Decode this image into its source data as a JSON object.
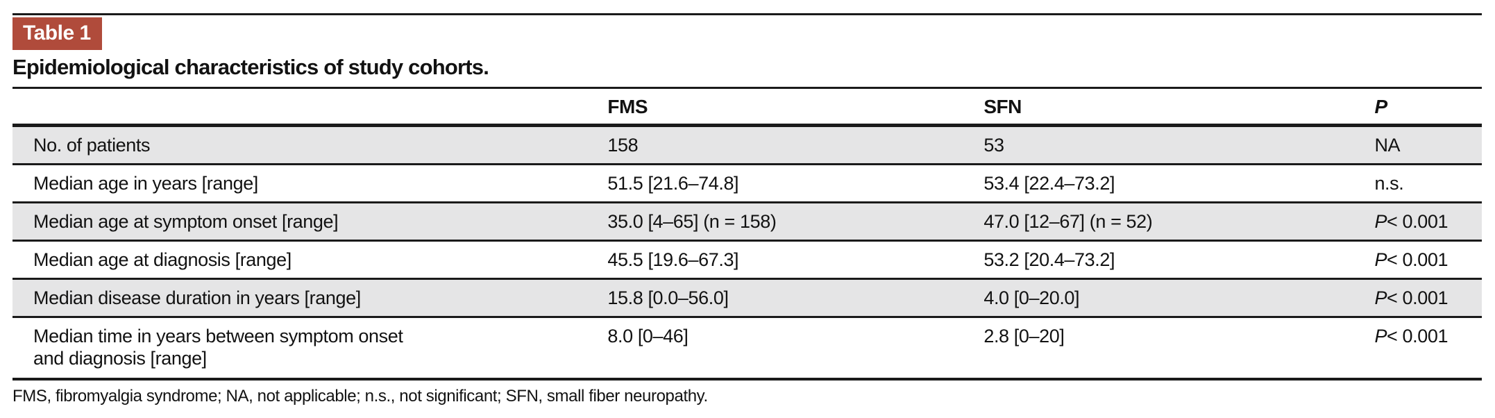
{
  "badge": {
    "label": "Table 1"
  },
  "title": "Epidemiological characteristics of study cohorts.",
  "table": {
    "columns": [
      "",
      "FMS",
      "SFN",
      "P"
    ],
    "rows": [
      {
        "label": "No. of patients",
        "label2": "",
        "fms": "158",
        "sfn": "53",
        "p_italic": "",
        "p_text": "NA"
      },
      {
        "label": "Median age in years [range]",
        "label2": "",
        "fms": "51.5 [21.6–74.8]",
        "sfn": "53.4 [22.4–73.2]",
        "p_italic": "",
        "p_text": "n.s."
      },
      {
        "label": "Median age at symptom onset [range]",
        "label2": "",
        "fms": "35.0 [4–65] (n = 158)",
        "sfn": "47.0 [12–67] (n = 52)",
        "p_italic": "P",
        "p_text": "< 0.001"
      },
      {
        "label": "Median age at diagnosis [range]",
        "label2": "",
        "fms": "45.5 [19.6–67.3]",
        "sfn": "53.2 [20.4–73.2]",
        "p_italic": "P",
        "p_text": "< 0.001"
      },
      {
        "label": "Median disease duration in years [range]",
        "label2": "",
        "fms": "15.8 [0.0–56.0]",
        "sfn": "4.0 [0–20.0]",
        "p_italic": "P",
        "p_text": "< 0.001"
      },
      {
        "label": "Median time in years between symptom onset",
        "label2": "and diagnosis [range]",
        "fms": "8.0 [0–46]",
        "sfn": "2.8 [0–20]",
        "p_italic": "P",
        "p_text": "< 0.001"
      }
    ]
  },
  "footnote": "FMS, fibromyalgia syndrome; NA, not applicable; n.s., not significant; SFN, small fiber neuropathy.",
  "colors": {
    "badge_background": "#b04b3b",
    "stripe_background": "#e5e5e6",
    "rule": "#1a1a1a",
    "text": "#121212"
  }
}
